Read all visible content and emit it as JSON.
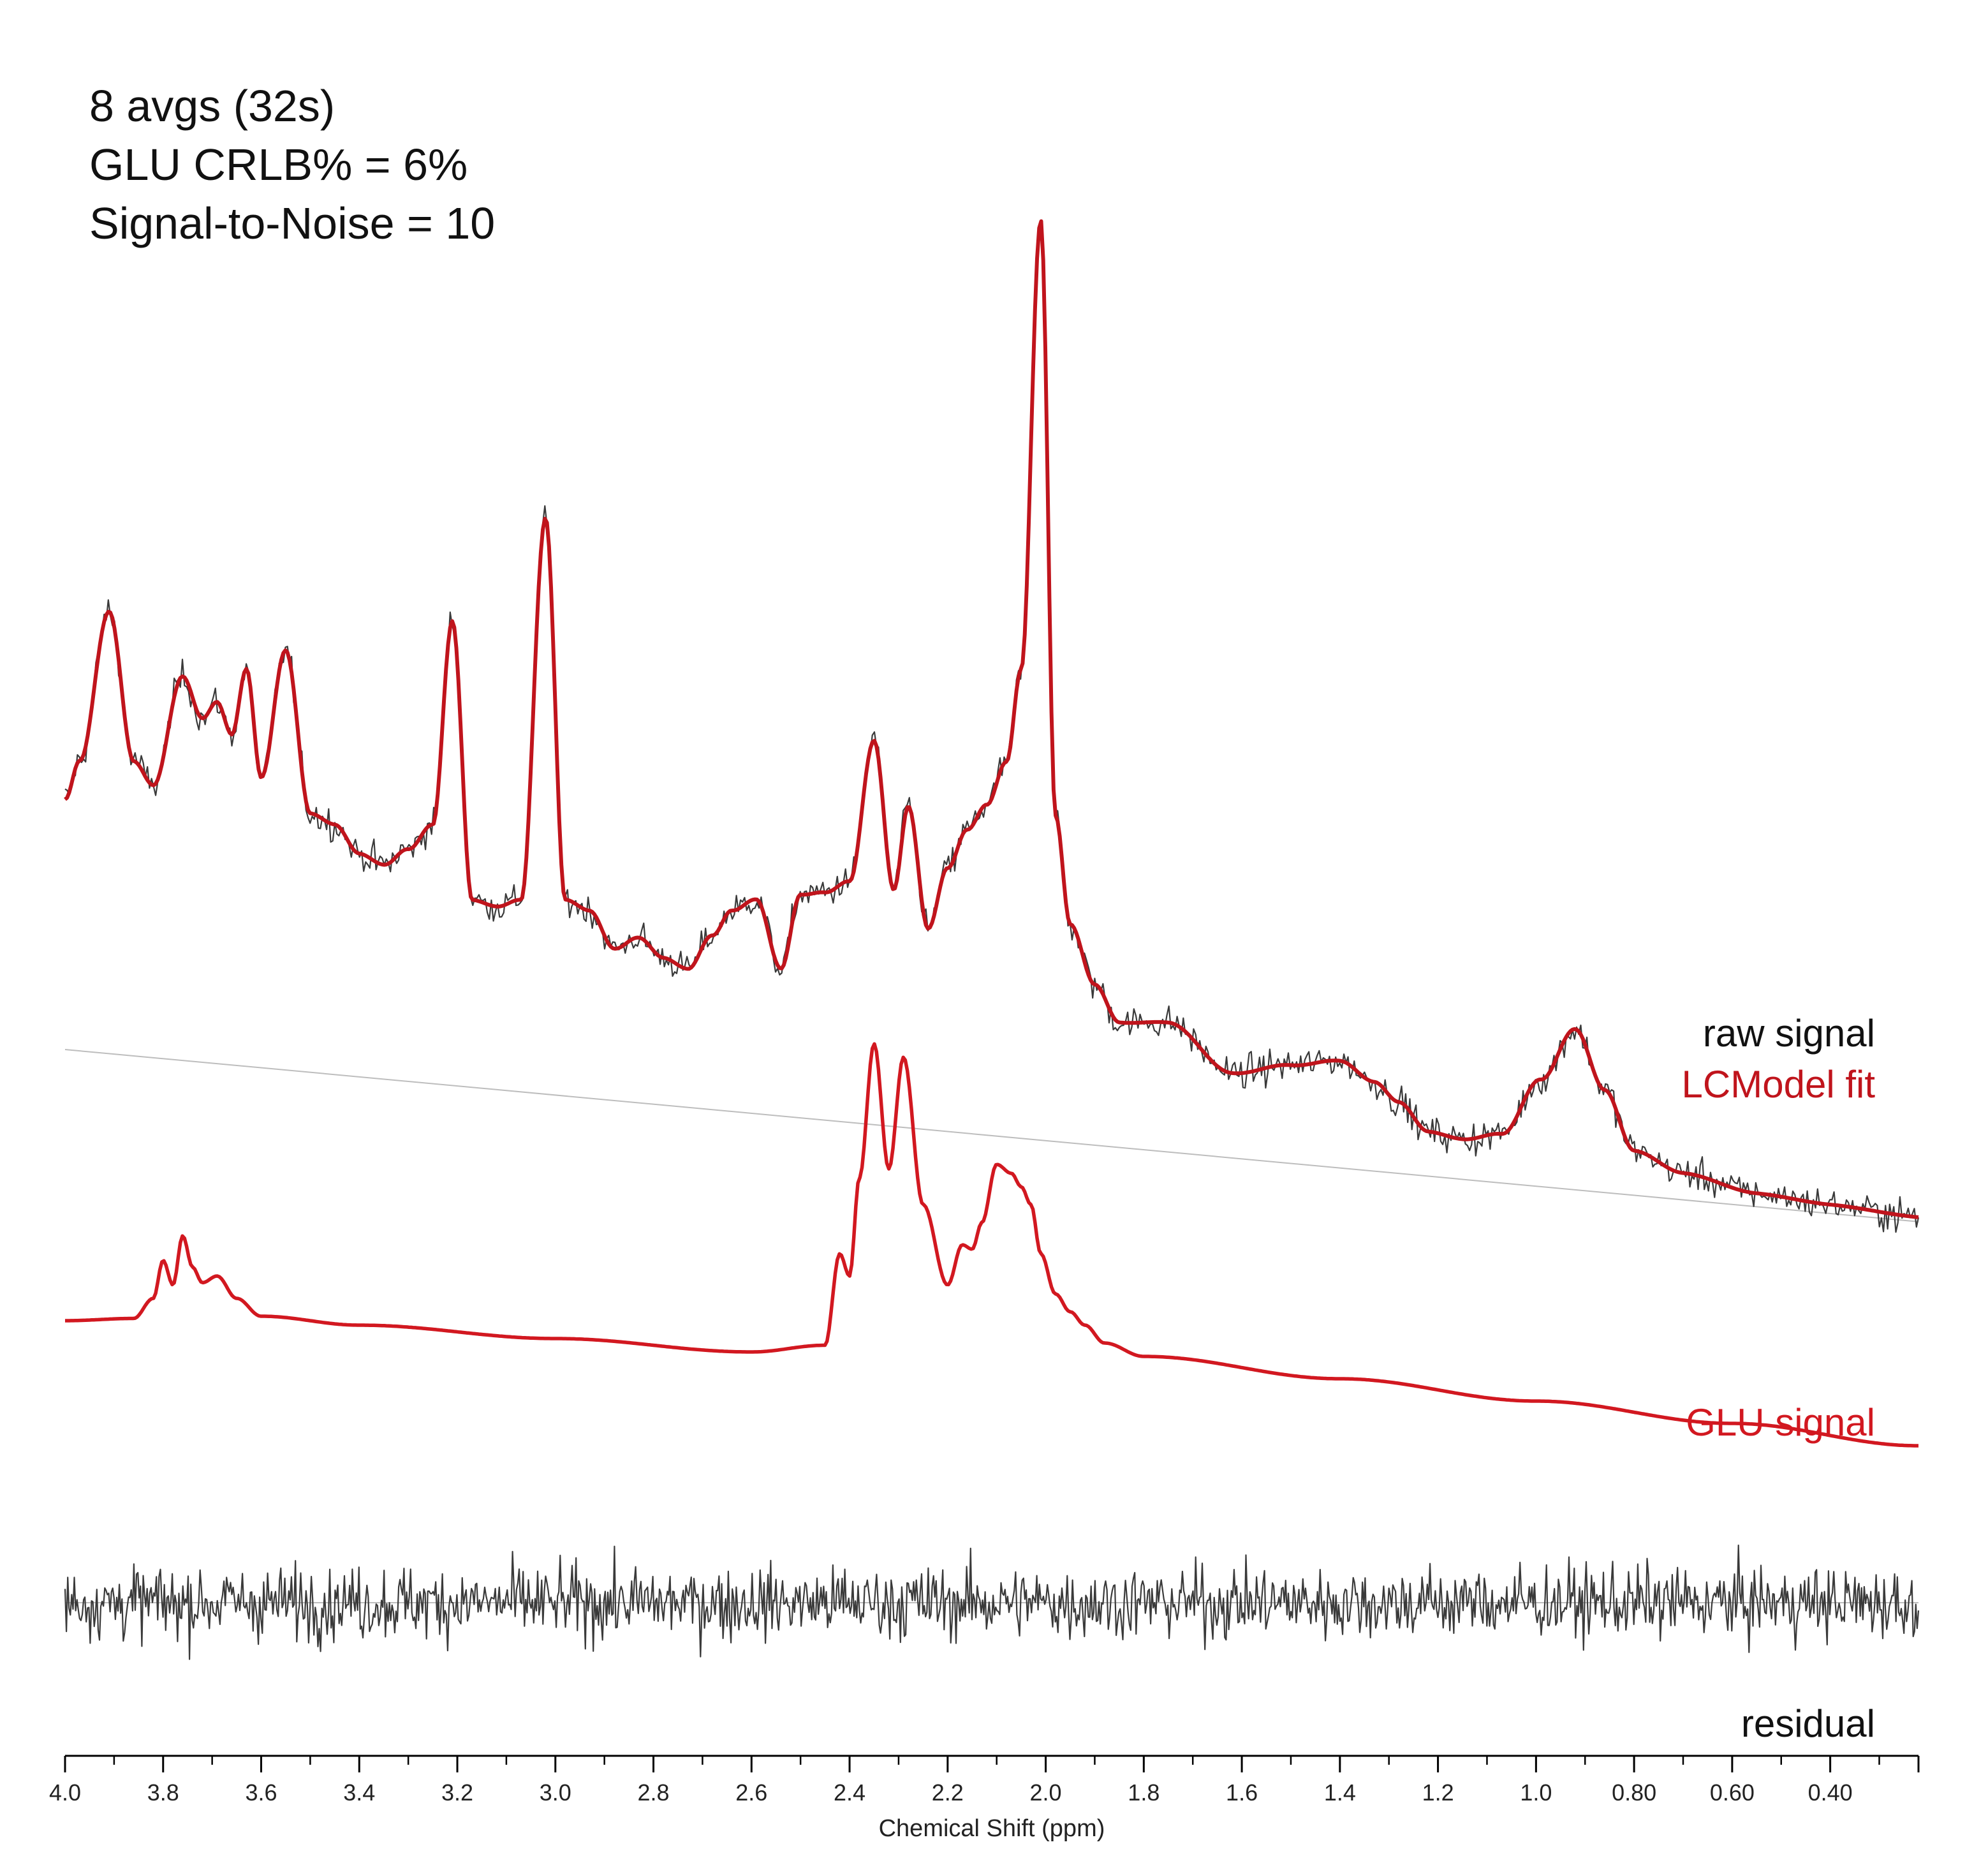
{
  "annotations": {
    "line1": "8 avgs (32s)",
    "line2": "GLU CRLB% = 6%",
    "line3": "Signal-to-Noise = 10"
  },
  "colors": {
    "raw": "#3a3a3a",
    "fit": "#c0141c",
    "glu": "#d21820",
    "residual": "#3a3a3a",
    "baseline": "#bdbdbd"
  },
  "chart_data": {
    "type": "line",
    "title": "",
    "xlabel": "Chemical Shift (ppm)",
    "ylabel": "",
    "xlim": [
      4.0,
      0.22
    ],
    "x_reversed": true,
    "grid": false,
    "xticks": [
      4.0,
      3.8,
      3.6,
      3.4,
      3.2,
      3.0,
      2.8,
      2.6,
      2.4,
      2.2,
      2.0,
      1.8,
      1.6,
      1.4,
      1.2,
      1.0,
      0.8,
      0.6,
      0.4
    ],
    "xtick_labels": [
      "4.0",
      "3.8",
      "3.6",
      "3.4",
      "3.2",
      "3.0",
      "2.8",
      "2.6",
      "2.4",
      "2.2",
      "2.0",
      "1.8",
      "1.6",
      "1.4",
      "1.2",
      "1.0",
      "0.80",
      "0.60",
      "0.40"
    ],
    "series": [
      {
        "name": "raw signal",
        "key": "raw",
        "label": "raw signal",
        "x": [
          4.0,
          3.97,
          3.91,
          3.86,
          3.82,
          3.76,
          3.72,
          3.69,
          3.66,
          3.63,
          3.6,
          3.55,
          3.5,
          3.45,
          3.4,
          3.35,
          3.3,
          3.25,
          3.21,
          3.17,
          3.12,
          3.07,
          3.02,
          2.98,
          2.93,
          2.88,
          2.83,
          2.78,
          2.73,
          2.68,
          2.64,
          2.59,
          2.54,
          2.5,
          2.45,
          2.4,
          2.35,
          2.31,
          2.28,
          2.24,
          2.2,
          2.16,
          2.12,
          2.08,
          2.05,
          2.01,
          1.98,
          1.95,
          1.9,
          1.85,
          1.75,
          1.62,
          1.5,
          1.4,
          1.33,
          1.28,
          1.22,
          1.15,
          1.07,
          0.99,
          0.92,
          0.86,
          0.8,
          0.7,
          0.55,
          0.4,
          0.22
        ],
        "y": [
          5.6,
          6.5,
          9.9,
          6.6,
          6.1,
          8.6,
          7.7,
          8.1,
          7.4,
          8.9,
          6.5,
          9.4,
          5.8,
          5.6,
          5.0,
          4.8,
          5.2,
          5.8,
          10.4,
          4.2,
          4.1,
          4.3,
          12.9,
          4.4,
          4.2,
          3.4,
          3.7,
          3.3,
          3.1,
          3.9,
          4.5,
          4.8,
          3.3,
          5.0,
          5.1,
          5.4,
          8.6,
          5.3,
          7.2,
          4.5,
          5.9,
          6.8,
          7.4,
          8.4,
          10.5,
          20.6,
          7.3,
          4.9,
          3.6,
          2.8,
          2.9,
          1.9,
          2.2,
          2.4,
          2.0,
          1.6,
          1.0,
          0.9,
          1.1,
          2.4,
          3.6,
          2.3,
          1.0,
          0.6,
          0.3,
          0.2,
          0.1
        ],
        "noise_sd": 0.45
      },
      {
        "name": "LCModel fit",
        "key": "fit",
        "label": "LCModel fit",
        "x": [
          4.0,
          3.97,
          3.91,
          3.86,
          3.82,
          3.76,
          3.72,
          3.69,
          3.66,
          3.63,
          3.6,
          3.55,
          3.5,
          3.45,
          3.4,
          3.35,
          3.3,
          3.25,
          3.21,
          3.17,
          3.12,
          3.07,
          3.02,
          2.98,
          2.93,
          2.88,
          2.83,
          2.78,
          2.73,
          2.68,
          2.64,
          2.59,
          2.54,
          2.5,
          2.45,
          2.4,
          2.35,
          2.31,
          2.28,
          2.24,
          2.2,
          2.16,
          2.12,
          2.08,
          2.05,
          2.01,
          1.98,
          1.95,
          1.9,
          1.85,
          1.75,
          1.62,
          1.5,
          1.4,
          1.33,
          1.28,
          1.22,
          1.15,
          1.07,
          0.99,
          0.92,
          0.86,
          0.8,
          0.7,
          0.55,
          0.4,
          0.22
        ],
        "y": [
          5.6,
          6.5,
          9.9,
          6.6,
          6.1,
          8.6,
          7.7,
          8.1,
          7.4,
          8.9,
          6.5,
          9.4,
          5.8,
          5.6,
          5.0,
          4.8,
          5.2,
          5.8,
          10.4,
          4.2,
          4.1,
          4.3,
          12.9,
          4.4,
          4.2,
          3.4,
          3.7,
          3.3,
          3.1,
          3.9,
          4.5,
          4.8,
          3.3,
          5.0,
          5.1,
          5.4,
          8.6,
          5.3,
          7.2,
          4.5,
          5.9,
          6.8,
          7.4,
          8.4,
          10.5,
          20.6,
          7.3,
          4.9,
          3.6,
          2.8,
          2.9,
          1.9,
          2.2,
          2.4,
          2.0,
          1.6,
          1.0,
          0.9,
          1.1,
          2.4,
          3.6,
          2.3,
          1.0,
          0.6,
          0.3,
          0.2,
          0.1
        ]
      },
      {
        "name": "GLU signal",
        "key": "glu",
        "label": "GLU signal",
        "x": [
          4.0,
          3.86,
          3.82,
          3.8,
          3.78,
          3.76,
          3.74,
          3.72,
          3.69,
          3.65,
          3.6,
          3.4,
          3.0,
          2.6,
          2.45,
          2.42,
          2.4,
          2.38,
          2.35,
          2.32,
          2.29,
          2.25,
          2.2,
          2.17,
          2.15,
          2.13,
          2.1,
          2.07,
          2.05,
          2.03,
          2.01,
          1.98,
          1.95,
          1.92,
          1.88,
          1.8,
          1.4,
          1.0,
          0.6,
          0.22
        ],
        "y": [
          0.0,
          0.05,
          0.5,
          1.35,
          0.8,
          1.9,
          1.2,
          0.85,
          1.0,
          0.5,
          0.1,
          -0.1,
          -0.4,
          -0.7,
          -0.55,
          1.5,
          1.0,
          3.2,
          6.2,
          3.4,
          5.9,
          2.6,
          0.8,
          1.7,
          1.6,
          2.2,
          3.5,
          3.3,
          3.0,
          2.6,
          1.5,
          0.6,
          0.2,
          -0.1,
          -0.5,
          -0.8,
          -1.3,
          -1.8,
          -2.3,
          -2.8
        ]
      },
      {
        "name": "residual",
        "key": "residual",
        "label": "residual",
        "x": [
          4.0,
          0.22
        ],
        "y": [
          0.0,
          0.0
        ],
        "noise_sd": 1.0
      }
    ]
  }
}
